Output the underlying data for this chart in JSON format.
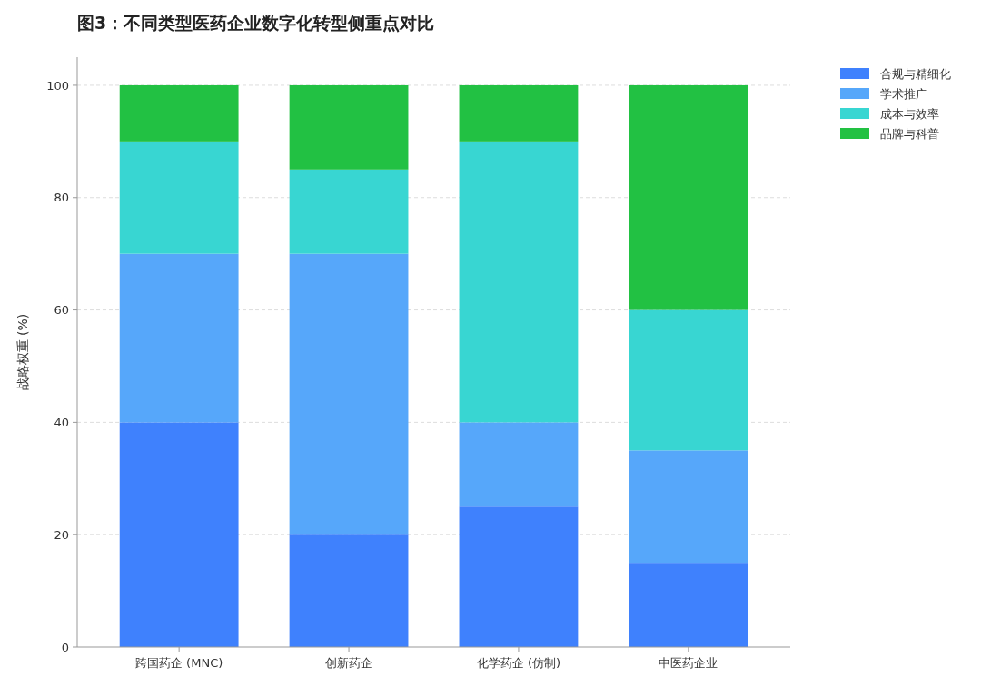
{
  "chart_data": {
    "type": "bar",
    "title": "图3：不同类型医药企业数字化转型侧重点对比",
    "ylabel": "战略权重 (%)",
    "categories": [
      "跨国药企 (MNC)",
      "创新药企",
      "化学药企 (仿制)",
      "中医药企业"
    ],
    "stacked": true,
    "series": [
      {
        "name": "合规与精细化",
        "color": "#3f81fd",
        "values": [
          40,
          20,
          25,
          15
        ]
      },
      {
        "name": "学术推广",
        "color": "#56a7fa",
        "values": [
          30,
          50,
          15,
          20
        ]
      },
      {
        "name": "成本与效率",
        "color": "#38d6d2",
        "values": [
          20,
          15,
          50,
          25
        ]
      },
      {
        "name": "品牌与科普",
        "color": "#22c143",
        "values": [
          10,
          15,
          10,
          40
        ]
      }
    ],
    "ylim": [
      0,
      105
    ],
    "yticks": [
      0,
      20,
      40,
      60,
      80,
      100
    ],
    "grid": "y",
    "legend": "top right"
  }
}
